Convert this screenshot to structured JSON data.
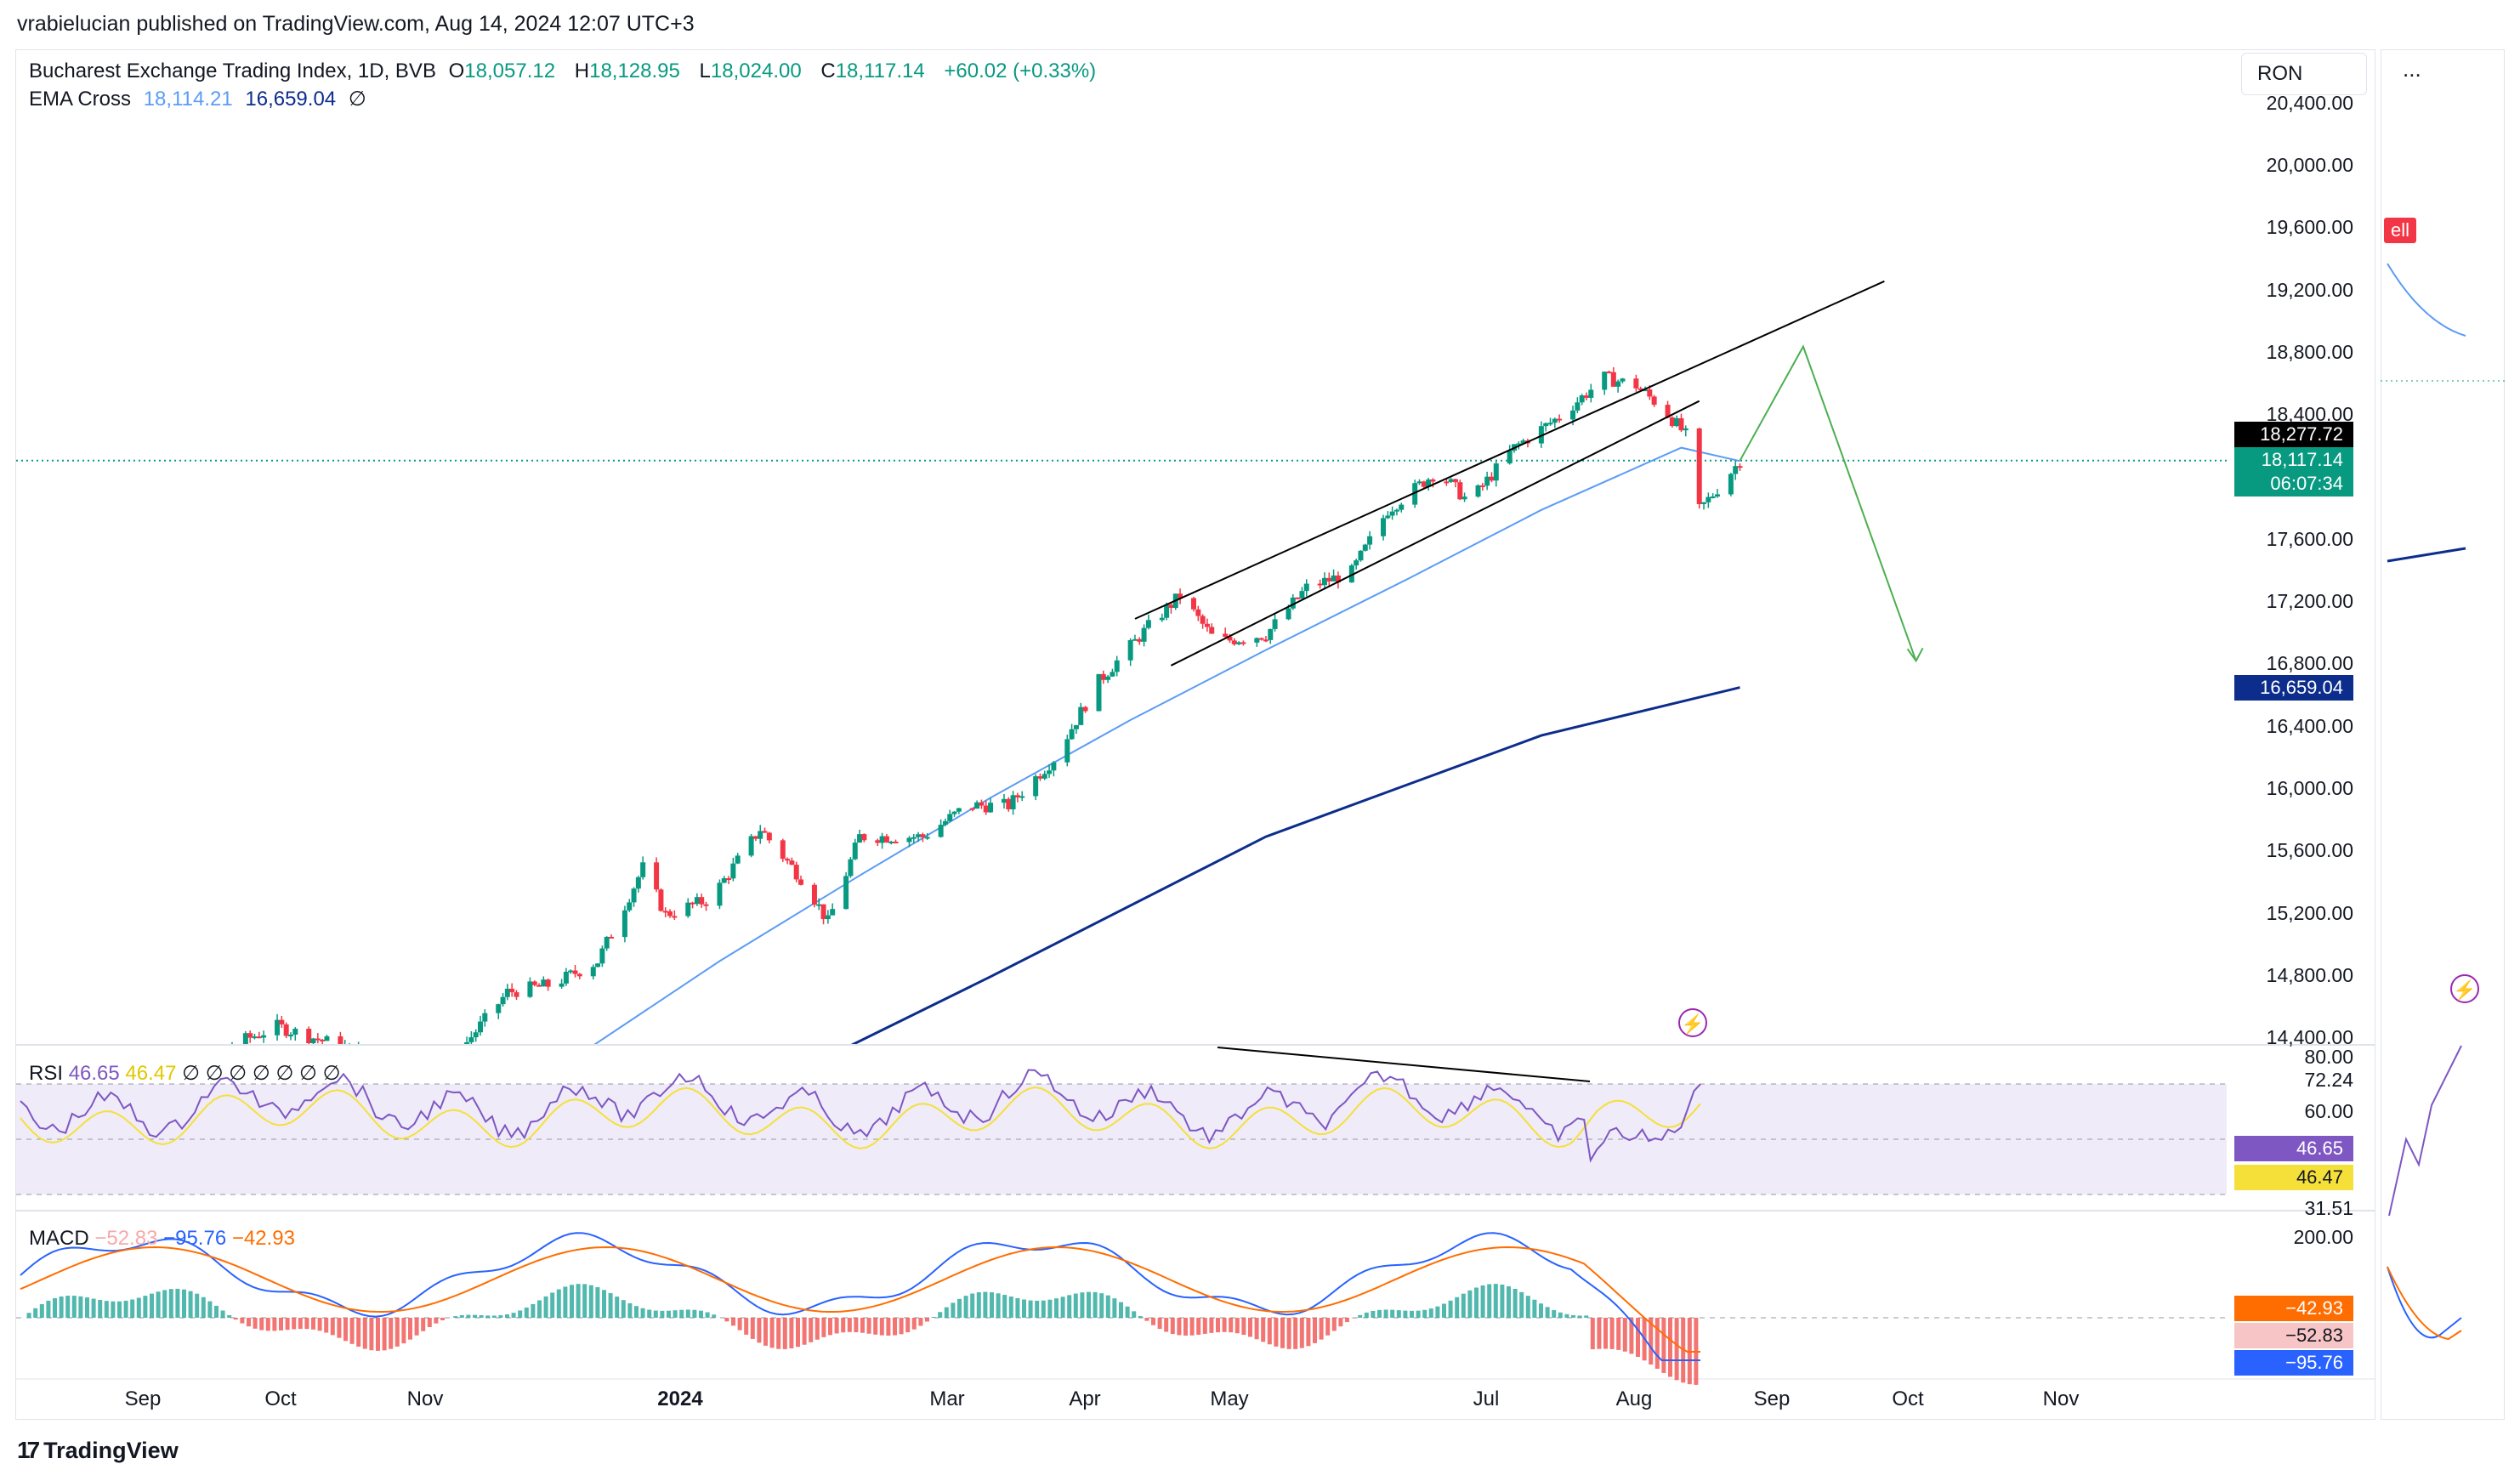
{
  "header": {
    "publisher": "vrabielucian published on TradingView.com, Aug 14, 2024 12:07 UTC+3"
  },
  "legend": {
    "symbol": "Bucharest Exchange Trading Index, 1D, BVB",
    "o_label": "O",
    "o_value": "18,057.12",
    "h_label": "H",
    "h_value": "18,128.95",
    "l_label": "L",
    "l_value": "18,024.00",
    "c_label": "C",
    "c_value": "18,117.14",
    "change": "+60.02 (+0.33%)",
    "ema_label": "EMA Cross",
    "ema_fast": "18,114.21",
    "ema_slow": "16,659.04",
    "ema_icon": "∅"
  },
  "toolbar": {
    "currency": "RON",
    "more": "..."
  },
  "price_axis": {
    "ticks": [
      "20,400.00",
      "20,000.00",
      "19,600.00",
      "19,200.00",
      "18,800.00",
      "18,400.00",
      "17,600.00",
      "17,200.00",
      "16,800.00",
      "16,400.00",
      "16,000.00",
      "15,600.00",
      "15,200.00",
      "14,800.00",
      "14,400.00"
    ],
    "labels": {
      "prev_close": "18,277.72",
      "last_price": "18,117.14",
      "countdown": "06:07:34",
      "ema_slow": "16,659.04"
    }
  },
  "time_axis": [
    "Sep",
    "Oct",
    "Nov",
    "2024",
    "Mar",
    "Apr",
    "May",
    "Jul",
    "Aug",
    "Sep",
    "Oct",
    "Nov"
  ],
  "rsi": {
    "label": "RSI",
    "value": "46.65",
    "signal": "46.47",
    "icons": "∅ ∅ ∅ ∅ ∅ ∅ ∅",
    "axis": [
      "80.00",
      "72.24",
      "60.00",
      "31.51"
    ],
    "tag_value": "46.65",
    "tag_signal": "46.47"
  },
  "macd": {
    "label": "MACD",
    "hist": "−52.83",
    "macd": "−95.76",
    "signal": "−42.93",
    "axis": [
      "200.00"
    ],
    "tag_signal": "−42.93",
    "tag_hist": "−52.83",
    "tag_macd": "−95.76"
  },
  "side": {
    "sell": "ell"
  },
  "brand": {
    "name": "TradingView",
    "mark": "17"
  },
  "colors": {
    "up": "#089981",
    "down": "#f23645",
    "ema_fast": "#5b9cf6",
    "ema_slow": "#0d2d8c",
    "rsi": "#7e57c2",
    "rsi_ma": "#f5e03a",
    "macd": "#2962ff",
    "macd_signal": "#ff6d00",
    "projection": "#4caf50"
  },
  "chart_data": {
    "type": "candlestick",
    "title": "Bucharest Exchange Trading Index, 1D, BVB",
    "ylim": [
      14400,
      20400
    ],
    "close_path": [
      [
        "2023-08-20",
        14200
      ],
      [
        "2023-09-10",
        14300
      ],
      [
        "2023-09-25",
        14480
      ],
      [
        "2023-10-15",
        14300
      ],
      [
        "2023-11-01",
        14200
      ],
      [
        "2023-11-15",
        14700
      ],
      [
        "2023-11-25",
        14750
      ],
      [
        "2023-12-05",
        14900
      ],
      [
        "2023-12-15",
        15500
      ],
      [
        "2023-12-20",
        15200
      ],
      [
        "2023-12-30",
        15300
      ],
      [
        "2024-01-10",
        15750
      ],
      [
        "2024-01-20",
        15400
      ],
      [
        "2024-01-25",
        15150
      ],
      [
        "2024-02-01",
        15700
      ],
      [
        "2024-02-15",
        15700
      ],
      [
        "2024-02-25",
        15900
      ],
      [
        "2024-03-05",
        15900
      ],
      [
        "2024-03-15",
        16200
      ],
      [
        "2024-03-25",
        16700
      ],
      [
        "2024-04-05",
        17050
      ],
      [
        "2024-04-12",
        17250
      ],
      [
        "2024-04-20",
        16950
      ],
      [
        "2024-05-01",
        17000
      ],
      [
        "2024-05-10",
        17300
      ],
      [
        "2024-05-20",
        17400
      ],
      [
        "2024-05-28",
        17800
      ],
      [
        "2024-06-08",
        18050
      ],
      [
        "2024-06-15",
        17850
      ],
      [
        "2024-06-25",
        18200
      ],
      [
        "2024-07-05",
        18400
      ],
      [
        "2024-07-15",
        18650
      ],
      [
        "2024-07-22",
        18600
      ],
      [
        "2024-07-28",
        18450
      ],
      [
        "2024-08-02",
        18280
      ],
      [
        "2024-08-05",
        17800
      ],
      [
        "2024-08-08",
        17900
      ],
      [
        "2024-08-14",
        18117
      ]
    ],
    "ema_fast": [
      [
        "2023-12-01",
        14300
      ],
      [
        "2024-01-01",
        14900
      ],
      [
        "2024-02-01",
        15450
      ],
      [
        "2024-03-01",
        15950
      ],
      [
        "2024-04-01",
        16450
      ],
      [
        "2024-05-01",
        16900
      ],
      [
        "2024-06-01",
        17350
      ],
      [
        "2024-07-01",
        17800
      ],
      [
        "2024-08-01",
        18200
      ],
      [
        "2024-08-14",
        18114
      ]
    ],
    "ema_slow": [
      [
        "2024-01-05",
        14000
      ],
      [
        "2024-03-01",
        14800
      ],
      [
        "2024-05-01",
        15700
      ],
      [
        "2024-07-01",
        16350
      ],
      [
        "2024-08-14",
        16659
      ]
    ],
    "channel_upper": [
      [
        "2024-04-02",
        17100
      ],
      [
        "2024-09-15",
        19270
      ]
    ],
    "channel_lower": [
      [
        "2024-04-10",
        16800
      ],
      [
        "2024-08-05",
        18500
      ]
    ],
    "projection": [
      [
        "2024-08-14",
        18117
      ],
      [
        "2024-08-28",
        18850
      ],
      [
        "2024-09-22",
        16830
      ]
    ]
  }
}
